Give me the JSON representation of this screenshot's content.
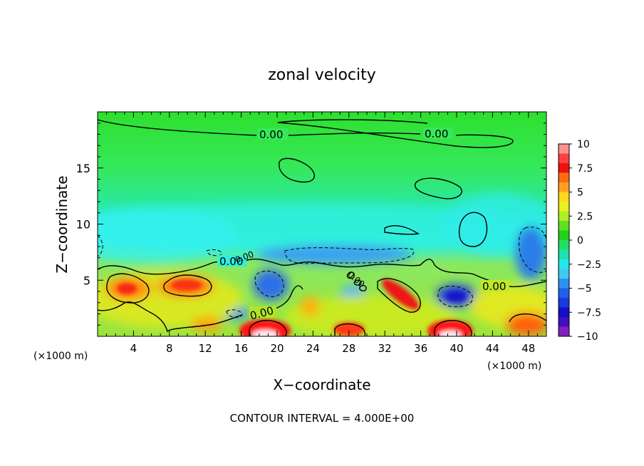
{
  "chart_data": {
    "type": "heatmap",
    "title": "zonal velocity",
    "xlabel": "X−coordinate",
    "ylabel": "Z−coordinate",
    "x_unit": "(×1000 m)",
    "x_unit_right": "(×1000 m)",
    "xlim": [
      0,
      50
    ],
    "ylim": [
      0,
      20
    ],
    "x_ticks": [
      "4",
      "8",
      "12",
      "16",
      "20",
      "24",
      "28",
      "32",
      "36",
      "40",
      "44",
      "48"
    ],
    "y_ticks": [
      "5",
      "10",
      "15"
    ],
    "colorbar": {
      "min": -10,
      "max": 10,
      "labels": [
        "10",
        "7.5",
        "5",
        "2.5",
        "0",
        "−2.5",
        "−5",
        "−7.5",
        "−10"
      ]
    },
    "contour_interval_text": "CONTOUR INTERVAL = 4.000E+00",
    "contour_labels": [
      "0.00",
      "0.00",
      "0.00",
      "0.00",
      "0.00",
      "0.00",
      "0.00"
    ],
    "features": [
      {
        "x": 19,
        "z": 0.3,
        "value": 10
      },
      {
        "x": 39.5,
        "z": 0.3,
        "value": 10
      },
      {
        "x": 33,
        "z": 3.8,
        "value": 8
      },
      {
        "x": 3.5,
        "z": 4.3,
        "value": 7
      },
      {
        "x": 10,
        "z": 4.3,
        "value": 7
      },
      {
        "x": 28,
        "z": 0.8,
        "value": 7
      },
      {
        "x": 47,
        "z": 1.5,
        "value": 7
      },
      {
        "x": 14,
        "z": 0.8,
        "value": 5
      },
      {
        "x": 23.5,
        "z": 2.5,
        "value": 4
      },
      {
        "x": 20,
        "z": 4.5,
        "value": -5
      },
      {
        "x": 38.5,
        "z": 3.6,
        "value": -6
      },
      {
        "x": 48,
        "z": 7.5,
        "value": -5
      },
      {
        "x": 30,
        "z": 7.4,
        "value": -3.5
      },
      {
        "x": 15,
        "z": 2,
        "value": -4
      },
      {
        "x": 8,
        "z": 10.5,
        "value": -2
      },
      {
        "x": 25,
        "z": 9.5,
        "value": -1.5
      },
      {
        "x": 27,
        "z": 17,
        "value": 0
      },
      {
        "x": 42,
        "z": 10.5,
        "value": 1
      }
    ]
  }
}
